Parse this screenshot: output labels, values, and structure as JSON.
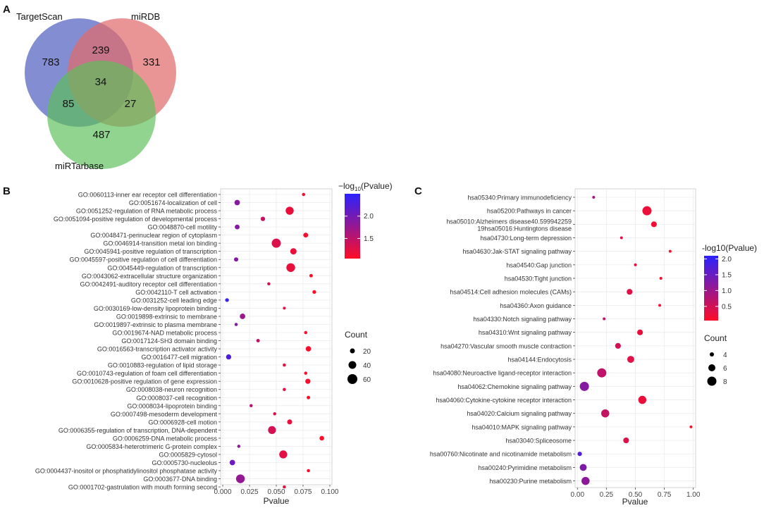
{
  "panels": {
    "a": {
      "label": "A",
      "venn": {
        "sets": [
          {
            "name": "TargetScan",
            "color": "#6d79c9"
          },
          {
            "name": "miRDB",
            "color": "#e06c6c"
          },
          {
            "name": "miRTarbase",
            "color": "#5cbf5a"
          }
        ],
        "regions": {
          "targetscan_only": "783",
          "mirdb_only": "331",
          "mirtarbase_only": "487",
          "targetscan_mirdb": "239",
          "targetscan_mirtarbase": "85",
          "mirdb_mirtarbase": "27",
          "all_three": "34"
        }
      }
    },
    "b": {
      "label": "B",
      "legend": {
        "color_title_prefix": "−log",
        "color_title_sub": "10",
        "color_title_suffix": "(Pvalue)",
        "color_range": [
          1.05,
          2.5
        ],
        "color_ticks": [
          "2.0",
          "1.5"
        ],
        "colors": {
          "low": "#ff0d26",
          "high": "#2a22ff"
        },
        "size_title": "Count",
        "size_ticks": [
          "20",
          "40",
          "60"
        ]
      }
    },
    "c": {
      "label": "C",
      "legend": {
        "color_title": "-log10(Pvalue)",
        "color_range": [
          0.05,
          2.1
        ],
        "color_ticks": [
          "2.0",
          "1.5",
          "1.0",
          "0.5"
        ],
        "colors": {
          "low": "#ff0d26",
          "high": "#2a22ff"
        },
        "size_title": "Count",
        "size_ticks": [
          "4",
          "6",
          "8"
        ]
      }
    }
  },
  "chart_data": [
    {
      "type": "scatter",
      "panel": "B",
      "title": "",
      "xlabel": "Pvalue",
      "ylabel": "",
      "xlim": [
        -0.002,
        0.102
      ],
      "xticks": [
        0.0,
        0.025,
        0.05,
        0.075,
        0.1
      ],
      "xtick_labels": [
        "0.000",
        "0.025",
        "0.050",
        "0.075",
        "0.100"
      ],
      "categories": [
        "GO:0060113-inner ear receptor cell differentiation",
        "GO:0051674-localization of cell",
        "GO:0051252-regulation of RNA metabolic process",
        "GO:0051094-positive regulation of developmental process",
        "GO:0048870-cell motility",
        "GO:0048471-perinuclear region of cytoplasm",
        "GO:0046914-transition metal ion binding",
        "GO:0045941-positive regulation of transcription",
        "GO:0045597-positive regulation of cell differentiation",
        "GO:0045449-regulation of transcription",
        "GO:0043062-extracellular structure organization",
        "GO:0042491-auditory receptor cell differentiation",
        "GO:0042110-T cell activation",
        "GO:0031252-cell leading edge",
        "GO:0030169-low-density lipoprotein binding",
        "GO:0019898-extrinsic to membrane",
        "GO:0019897-extrinsic to plasma membrane",
        "GO:0019674-NAD metabolic process",
        "GO:0017124-SH3 domain binding",
        "GO:0016563-transcription activator activity",
        "GO:0016477-cell migration",
        "GO:0010883-regulation of lipid storage",
        "GO:0010743-regulation of foam cell differentiation",
        "GO:0010628-positive regulation of gene expression",
        "GO:0008038-neuron recognition",
        "GO:0008037-cell recognition",
        "GO:0008034-lipoprotein binding",
        "GO:0007498-mesoderm development",
        "GO:0006928-cell motion",
        "GO:0006355-regulation of transcription, DNA-dependent",
        "GO:0006259-DNA metabolic process",
        "GO:0005834-heterotrimeric G-protein complex",
        "GO:0005829-cytosol",
        "GO:0005730-nucleolus",
        "GO:0004437-inositol or phosphatidylinositol phosphatase activity",
        "GO:0003677-DNA binding",
        "GO:0001702-gastrulation with mouth forming second"
      ],
      "x": [
        0.0755,
        0.0135,
        0.0625,
        0.0375,
        0.0135,
        0.0775,
        0.05,
        0.066,
        0.0125,
        0.0635,
        0.0825,
        0.043,
        0.0855,
        0.004,
        0.0575,
        0.0185,
        0.0125,
        0.0775,
        0.033,
        0.08,
        0.0055,
        0.0575,
        0.0775,
        0.0795,
        0.0575,
        0.08,
        0.0265,
        0.0485,
        0.0625,
        0.046,
        0.0925,
        0.015,
        0.0565,
        0.009,
        0.08,
        0.0165,
        0.0575
      ],
      "count": [
        3,
        14,
        36,
        8,
        10,
        10,
        48,
        20,
        7,
        43,
        4,
        3,
        5,
        5,
        2,
        14,
        3,
        3,
        4,
        13,
        12,
        3,
        3,
        12,
        3,
        4,
        3,
        3,
        11,
        34,
        9,
        3,
        35,
        14,
        3,
        43,
        3
      ],
      "neg_log10_pvalue": [
        1.12,
        1.87,
        1.2,
        1.43,
        1.87,
        1.11,
        1.3,
        1.18,
        1.9,
        1.2,
        1.08,
        1.37,
        1.07,
        2.4,
        1.24,
        1.73,
        1.9,
        1.11,
        1.48,
        1.1,
        2.26,
        1.24,
        1.11,
        1.1,
        1.24,
        1.1,
        1.58,
        1.31,
        1.2,
        1.34,
        1.05,
        1.82,
        1.25,
        2.05,
        1.1,
        1.78,
        1.24
      ]
    },
    {
      "type": "scatter",
      "panel": "C",
      "title": "",
      "xlabel": "Pvalue",
      "ylabel": "",
      "xlim": [
        -0.02,
        1.02
      ],
      "xticks": [
        0.0,
        0.25,
        0.5,
        0.75,
        1.0
      ],
      "xtick_labels": [
        "0.00",
        "0.25",
        "0.50",
        "0.75",
        "1.00"
      ],
      "categories": [
        "hsa05340:Primary immunodeficiency",
        "hsa05200:Pathways in cancer",
        "hsa05010:Alzheimers disease40.599942259",
        "hsa04730:Long-term depression",
        "hsa04630:Jak-STAT signaling pathway",
        "hsa04540:Gap junction",
        "hsa04530:Tight junction",
        "hsa04514:Cell adhesion molecules (CAMs)",
        "hsa04360:Axon guidance",
        "hsa04330:Notch signaling pathway",
        "hsa04310:Wnt signaling pathway",
        "hsa04270:Vascular smooth muscle contraction",
        "hsa04144:Endocytosis",
        "hsa04080:Neuroactive ligand-receptor interaction",
        "hsa04062:Chemokine signaling pathway",
        "hsa04060:Cytokine-cytokine receptor interaction",
        "hsa04020:Calcium signaling pathway",
        "hsa04010:MAPK signaling pathway",
        "hsa03040:Spliceosome",
        "hsa00760:Nicotinate and nicotinamide metabolism",
        "hsa00240:Pyrimidine metabolism",
        "hsa00230:Purine metabolism"
      ],
      "category_sublabels": {
        "2": "19hsa05016:Huntingtons disease"
      },
      "x": [
        0.14,
        0.6,
        0.66,
        0.38,
        0.8,
        0.5,
        0.72,
        0.45,
        0.71,
        0.23,
        0.54,
        0.35,
        0.46,
        0.21,
        0.06,
        0.56,
        0.24,
        0.98,
        0.42,
        0.02,
        0.05,
        0.07
      ],
      "count": [
        3,
        8,
        5,
        3,
        3,
        3,
        3,
        5,
        3,
        3,
        5,
        5,
        6,
        8,
        8,
        7,
        7,
        3,
        5,
        4,
        6,
        7
      ],
      "neg_log10_pvalue": [
        0.85,
        0.22,
        0.18,
        0.42,
        0.1,
        0.3,
        0.14,
        0.35,
        0.15,
        0.64,
        0.27,
        0.46,
        0.34,
        0.68,
        1.22,
        0.25,
        0.62,
        0.01,
        0.38,
        1.7,
        1.3,
        1.15
      ]
    }
  ]
}
